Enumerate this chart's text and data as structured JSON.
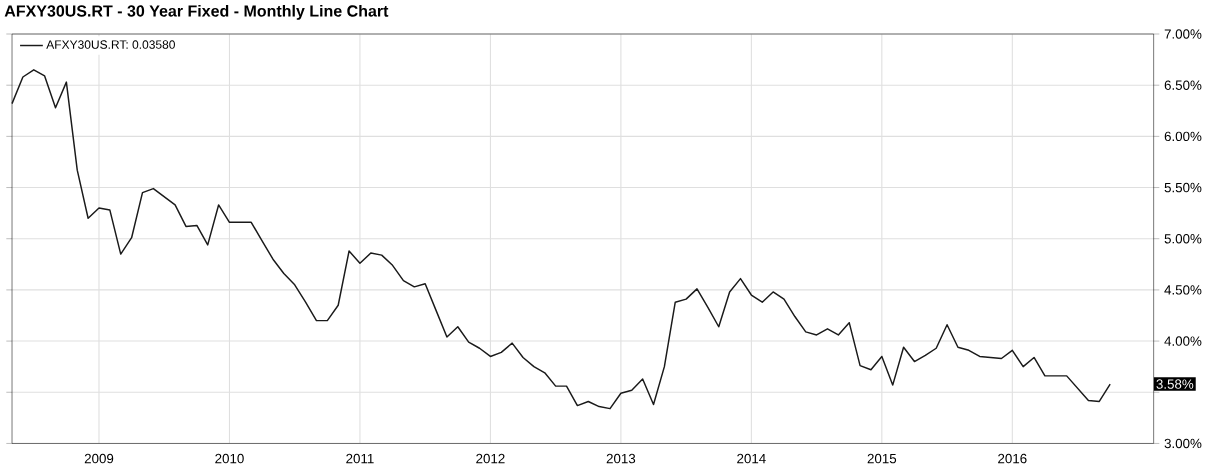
{
  "chart_data": {
    "type": "line",
    "title": "AFXY30US.RT - 30 Year Fixed - Monthly Line Chart",
    "x": [
      "2008-05",
      "2008-06",
      "2008-07",
      "2008-08",
      "2008-09",
      "2008-10",
      "2008-11",
      "2008-12",
      "2009-01",
      "2009-02",
      "2009-03",
      "2009-04",
      "2009-05",
      "2009-06",
      "2009-07",
      "2009-08",
      "2009-09",
      "2009-10",
      "2009-11",
      "2009-12",
      "2010-01",
      "2010-02",
      "2010-03",
      "2010-04",
      "2010-05",
      "2010-06",
      "2010-07",
      "2010-08",
      "2010-09",
      "2010-10",
      "2010-11",
      "2010-12",
      "2011-01",
      "2011-02",
      "2011-03",
      "2011-04",
      "2011-05",
      "2011-06",
      "2011-07",
      "2011-08",
      "2011-09",
      "2011-10",
      "2011-11",
      "2011-12",
      "2012-01",
      "2012-02",
      "2012-03",
      "2012-04",
      "2012-05",
      "2012-06",
      "2012-07",
      "2012-08",
      "2012-09",
      "2012-10",
      "2012-11",
      "2012-12",
      "2013-01",
      "2013-02",
      "2013-03",
      "2013-04",
      "2013-05",
      "2013-06",
      "2013-07",
      "2013-08",
      "2013-09",
      "2013-10",
      "2013-11",
      "2013-12",
      "2014-01",
      "2014-02",
      "2014-03",
      "2014-04",
      "2014-05",
      "2014-06",
      "2014-07",
      "2014-08",
      "2014-09",
      "2014-10",
      "2014-11",
      "2014-12",
      "2015-01",
      "2015-02",
      "2015-03",
      "2015-04",
      "2015-05",
      "2015-06",
      "2015-07",
      "2015-08",
      "2015-09",
      "2015-10",
      "2015-11",
      "2015-12",
      "2016-01",
      "2016-02",
      "2016-03",
      "2016-04",
      "2016-05",
      "2016-06",
      "2016-07",
      "2016-08",
      "2016-09",
      "2016-10"
    ],
    "series": [
      {
        "name": "AFXY30US.RT: 0.03580",
        "color": "#1a1a1a",
        "values": [
          6.32,
          6.58,
          6.65,
          6.59,
          6.28,
          6.53,
          5.67,
          5.2,
          5.3,
          5.28,
          4.85,
          5.01,
          5.45,
          5.49,
          5.41,
          5.33,
          5.12,
          5.13,
          4.94,
          5.33,
          5.16,
          5.16,
          5.16,
          4.98,
          4.8,
          4.66,
          4.55,
          4.38,
          4.2,
          4.2,
          4.35,
          4.88,
          4.76,
          4.86,
          4.84,
          4.74,
          4.59,
          4.53,
          4.56,
          4.3,
          4.04,
          4.14,
          3.99,
          3.93,
          3.85,
          3.89,
          3.98,
          3.84,
          3.75,
          3.69,
          3.56,
          3.56,
          3.37,
          3.41,
          3.36,
          3.34,
          3.49,
          3.52,
          3.63,
          3.38,
          3.75,
          4.38,
          4.41,
          4.51,
          4.33,
          4.14,
          4.48,
          4.61,
          4.45,
          4.38,
          4.48,
          4.41,
          4.24,
          4.09,
          4.06,
          4.12,
          4.06,
          4.18,
          3.76,
          3.72,
          3.85,
          3.57,
          3.94,
          3.8,
          3.86,
          3.93,
          4.16,
          3.94,
          3.91,
          3.85,
          3.84,
          3.83,
          3.91,
          3.75,
          3.84,
          3.66,
          3.66,
          3.66,
          3.54,
          3.42,
          3.41,
          3.58
        ]
      }
    ],
    "xlim": [
      "2008-05",
      "2017-02"
    ],
    "xticks": [
      {
        "value": "2009-01",
        "label": "2009"
      },
      {
        "value": "2010-01",
        "label": "2010"
      },
      {
        "value": "2011-01",
        "label": "2011"
      },
      {
        "value": "2012-01",
        "label": "2012"
      },
      {
        "value": "2013-01",
        "label": "2013"
      },
      {
        "value": "2014-01",
        "label": "2014"
      },
      {
        "value": "2015-01",
        "label": "2015"
      },
      {
        "value": "2016-01",
        "label": "2016"
      }
    ],
    "ylim": [
      3,
      7
    ],
    "yticks": [
      {
        "value": 3,
        "label": "3.00%"
      },
      {
        "value": 3.5,
        "label": null
      },
      {
        "value": 4,
        "label": "4.00%"
      },
      {
        "value": 4.5,
        "label": "4.50%"
      },
      {
        "value": 5,
        "label": "5.00%"
      },
      {
        "value": 5.5,
        "label": "5.50%"
      },
      {
        "value": 6,
        "label": "6.00%"
      },
      {
        "value": 6.5,
        "label": "6.50%"
      },
      {
        "value": 7,
        "label": "7.00%"
      }
    ],
    "annotations": [
      "3.58%"
    ],
    "grid": true,
    "legend": "top left",
    "line_style": "solid",
    "marker": "none"
  }
}
